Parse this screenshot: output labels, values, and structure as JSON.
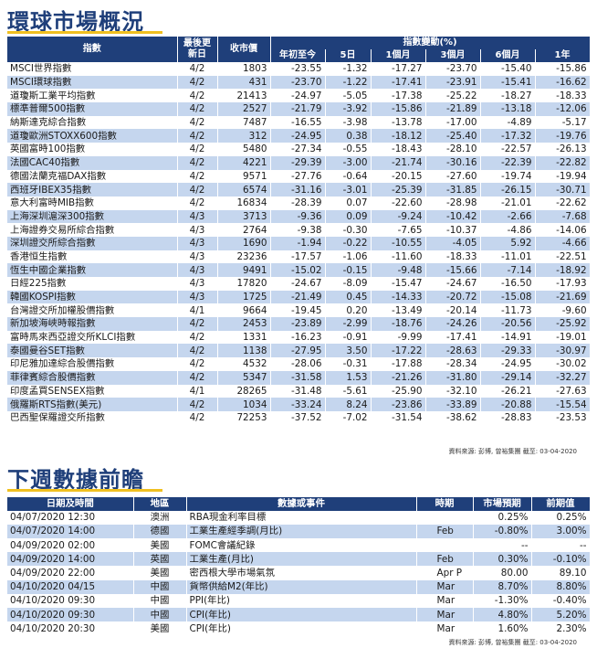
{
  "market": {
    "title": "環球市場概況",
    "headers": {
      "index": "指數",
      "last_update": "最後更新日",
      "close": "收市價",
      "change_group": "指數變動(%)",
      "ytd": "年初至今",
      "d5": "5日",
      "m1": "1個月",
      "m3": "3個月",
      "m6": "6個月",
      "y1": "1年"
    },
    "rows": [
      [
        "MSCI世界指數",
        "4/2",
        "1803",
        "-23.55",
        "-1.32",
        "-17.27",
        "-23.70",
        "-15.40",
        "-15.86"
      ],
      [
        "MSCI環球指數",
        "4/2",
        "431",
        "-23.70",
        "-1.22",
        "-17.41",
        "-23.91",
        "-15.41",
        "-16.62"
      ],
      [
        "道瓊斯工業平均指數",
        "4/2",
        "21413",
        "-24.97",
        "-5.05",
        "-17.38",
        "-25.22",
        "-18.27",
        "-18.33"
      ],
      [
        "標準普爾500指數",
        "4/2",
        "2527",
        "-21.79",
        "-3.92",
        "-15.86",
        "-21.89",
        "-13.18",
        "-12.06"
      ],
      [
        "納斯達克綜合指數",
        "4/2",
        "7487",
        "-16.55",
        "-3.98",
        "-13.78",
        "-17.00",
        "-4.89",
        "-5.17"
      ],
      [
        "道瓊歐洲STOXX600指數",
        "4/2",
        "312",
        "-24.95",
        "0.38",
        "-18.12",
        "-25.40",
        "-17.32",
        "-19.76"
      ],
      [
        "英國富時100指數",
        "4/2",
        "5480",
        "-27.34",
        "-0.55",
        "-18.43",
        "-28.10",
        "-22.57",
        "-26.13"
      ],
      [
        "法國CAC40指數",
        "4/2",
        "4221",
        "-29.39",
        "-3.00",
        "-21.74",
        "-30.16",
        "-22.39",
        "-22.82"
      ],
      [
        "德國法蘭克福DAX指數",
        "4/2",
        "9571",
        "-27.76",
        "-0.64",
        "-20.15",
        "-27.60",
        "-19.74",
        "-19.94"
      ],
      [
        "西班牙IBEX35指數",
        "4/2",
        "6574",
        "-31.16",
        "-3.01",
        "-25.39",
        "-31.85",
        "-26.15",
        "-30.71"
      ],
      [
        "意大利富時MIB指數",
        "4/2",
        "16834",
        "-28.39",
        "0.07",
        "-22.60",
        "-28.98",
        "-21.01",
        "-22.62"
      ],
      [
        "上海深圳滬深300指數",
        "4/3",
        "3713",
        "-9.36",
        "0.09",
        "-9.24",
        "-10.42",
        "-2.66",
        "-7.68"
      ],
      [
        "上海證券交易所綜合指數",
        "4/3",
        "2764",
        "-9.38",
        "-0.30",
        "-7.65",
        "-10.37",
        "-4.86",
        "-14.06"
      ],
      [
        "深圳證交所綜合指數",
        "4/3",
        "1690",
        "-1.94",
        "-0.22",
        "-10.55",
        "-4.05",
        "5.92",
        "-4.66"
      ],
      [
        "香港恒生指數",
        "4/3",
        "23236",
        "-17.57",
        "-1.06",
        "-11.60",
        "-18.33",
        "-11.01",
        "-22.51"
      ],
      [
        "恆生中國企業指數",
        "4/3",
        "9491",
        "-15.02",
        "-0.15",
        "-9.48",
        "-15.66",
        "-7.14",
        "-18.92"
      ],
      [
        "日經225指數",
        "4/3",
        "17820",
        "-24.67",
        "-8.09",
        "-15.47",
        "-24.67",
        "-16.50",
        "-17.93"
      ],
      [
        "韓國KOSPI指數",
        "4/3",
        "1725",
        "-21.49",
        "0.45",
        "-14.33",
        "-20.72",
        "-15.08",
        "-21.69"
      ],
      [
        "台灣證交所加權股價指數",
        "4/1",
        "9664",
        "-19.45",
        "0.20",
        "-13.49",
        "-20.14",
        "-11.73",
        "-9.60"
      ],
      [
        "新加坡海峽時報指數",
        "4/2",
        "2453",
        "-23.89",
        "-2.99",
        "-18.76",
        "-24.26",
        "-20.56",
        "-25.92"
      ],
      [
        "富時馬來西亞證交所KLCI指數",
        "4/2",
        "1331",
        "-16.23",
        "-0.91",
        "-9.99",
        "-17.41",
        "-14.91",
        "-19.01"
      ],
      [
        "泰國曼谷SET指數",
        "4/2",
        "1138",
        "-27.95",
        "3.50",
        "-17.22",
        "-28.63",
        "-29.33",
        "-30.97"
      ],
      [
        "印尼雅加達綜合股價指數",
        "4/2",
        "4532",
        "-28.06",
        "-0.31",
        "-17.88",
        "-28.34",
        "-24.95",
        "-30.02"
      ],
      [
        "菲律賓綜合股價指數",
        "4/2",
        "5347",
        "-31.58",
        "1.53",
        "-21.26",
        "-31.80",
        "-29.14",
        "-32.27"
      ],
      [
        "印度孟買SENSEX指數",
        "4/1",
        "28265",
        "-31.48",
        "-5.61",
        "-25.90",
        "-32.10",
        "-26.21",
        "-27.63"
      ],
      [
        "俄羅斯RTS指數(美元)",
        "4/2",
        "1034",
        "-33.24",
        "8.24",
        "-23.86",
        "-33.89",
        "-20.88",
        "-15.54"
      ],
      [
        "巴西聖保羅證交所指數",
        "4/2",
        "72253",
        "-37.52",
        "-7.02",
        "-31.54",
        "-38.62",
        "-28.83",
        "-23.53"
      ]
    ],
    "source": "資料來源: 彭博, 曾裕集團 截至: 03-04-2020"
  },
  "calendar": {
    "title": "下週數據前瞻",
    "headers": {
      "datetime": "日期及時間",
      "region": "地區",
      "event": "數據或事件",
      "period": "時期",
      "forecast": "市場預期",
      "previous": "前期值"
    },
    "rows": [
      [
        "04/07/2020 12:30",
        "澳洲",
        "RBA現金利率目標",
        "",
        "0.25%",
        "0.25%"
      ],
      [
        "04/07/2020 14:00",
        "德國",
        "工業生產經季調(月比)",
        "Feb",
        "-0.80%",
        "3.00%"
      ],
      [
        "04/09/2020 02:00",
        "美國",
        "FOMC會議紀錄",
        "",
        "--",
        "--"
      ],
      [
        "04/09/2020 14:00",
        "英國",
        "工業生產(月比)",
        "Feb",
        "0.30%",
        "-0.10%"
      ],
      [
        "04/09/2020 22:00",
        "美國",
        "密西根大學市場氣氛",
        "Apr P",
        "80.00",
        "89.10"
      ],
      [
        "04/10/2020 04/15",
        "中國",
        "貨幣供給M2(年比)",
        "Mar",
        "8.70%",
        "8.80%"
      ],
      [
        "04/10/2020 09:30",
        "中國",
        "PPI(年比)",
        "Mar",
        "-1.30%",
        "-0.40%"
      ],
      [
        "04/10/2020 09:30",
        "中國",
        "CPI(年比)",
        "Mar",
        "4.80%",
        "5.20%"
      ],
      [
        "04/10/2020 20:30",
        "美國",
        "CPI(年比)",
        "Mar",
        "1.60%",
        "2.30%"
      ]
    ],
    "source": "資料來源: 彭博, 曾裕集團 截至: 03-04-2020"
  }
}
